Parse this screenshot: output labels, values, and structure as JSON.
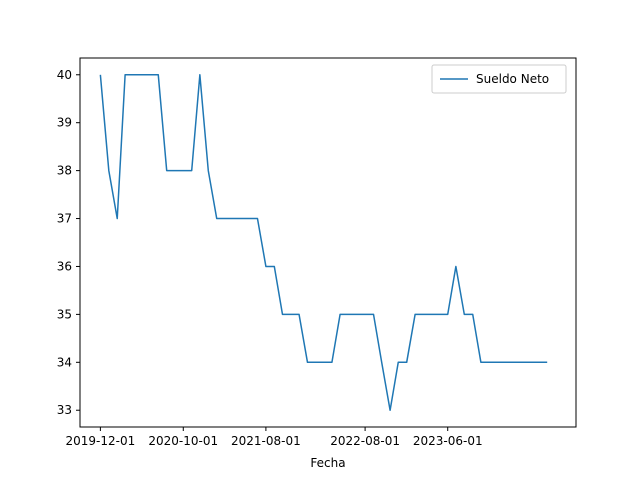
{
  "chart_data": {
    "type": "line",
    "title": "",
    "xlabel": "Fecha",
    "ylabel": "",
    "x_ticks": [
      "2019-12-01",
      "2020-10-01",
      "2021-08-01",
      "2022-08-01",
      "2023-06-01"
    ],
    "y_ticks": [
      33,
      34,
      35,
      36,
      37,
      38,
      39,
      40
    ],
    "ylim": [
      32.65,
      40.35
    ],
    "xlim": [
      "2019-09-17",
      "2024-09-15"
    ],
    "grid": false,
    "legend_position": "top-right",
    "series": [
      {
        "name": "Sueldo Neto",
        "color": "#1f77b4",
        "x": [
          "2019-12-01",
          "2020-01-01",
          "2020-02-01",
          "2020-03-01",
          "2020-04-01",
          "2020-05-01",
          "2020-06-01",
          "2020-07-01",
          "2020-08-01",
          "2020-09-01",
          "2020-10-01",
          "2020-11-01",
          "2020-12-01",
          "2021-01-01",
          "2021-02-01",
          "2021-03-01",
          "2021-04-01",
          "2021-05-01",
          "2021-06-01",
          "2021-07-01",
          "2021-08-01",
          "2021-09-01",
          "2021-10-01",
          "2021-11-01",
          "2021-12-01",
          "2022-01-01",
          "2022-02-01",
          "2022-03-01",
          "2022-04-01",
          "2022-05-01",
          "2022-06-01",
          "2022-07-01",
          "2022-08-01",
          "2022-09-01",
          "2022-10-01",
          "2022-11-01",
          "2022-12-01",
          "2023-01-01",
          "2023-02-01",
          "2023-03-01",
          "2023-04-01",
          "2023-05-01",
          "2023-06-01",
          "2023-07-01",
          "2023-08-01",
          "2023-09-01",
          "2023-10-01",
          "2023-11-01",
          "2023-12-01",
          "2024-01-01",
          "2024-02-01",
          "2024-03-01",
          "2024-04-01",
          "2024-05-01",
          "2024-06-01"
        ],
        "values": [
          40,
          38,
          37,
          40,
          40,
          40,
          40,
          40,
          38,
          38,
          38,
          38,
          40,
          38,
          37,
          37,
          37,
          37,
          37,
          37,
          36,
          36,
          35,
          35,
          35,
          34,
          34,
          34,
          34,
          35,
          35,
          35,
          35,
          35,
          34,
          33,
          34,
          34,
          35,
          35,
          35,
          35,
          35,
          36,
          35,
          35,
          34,
          34,
          34,
          34,
          34,
          34,
          34,
          34,
          34
        ]
      }
    ]
  }
}
